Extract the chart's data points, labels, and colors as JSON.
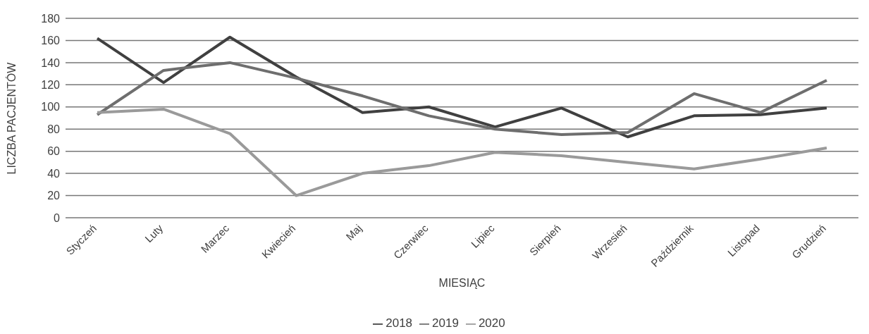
{
  "chart_data": {
    "type": "line",
    "xlabel": "MIESIĄC",
    "ylabel": "LICZBA PACJENTÓW",
    "categories": [
      "Styczeń",
      "Luty",
      "Marzec",
      "Kwiecień",
      "Maj",
      "Czerwiec",
      "Lipiec",
      "Sierpień",
      "Wrzesień",
      "Październik",
      "Listopad",
      "Grudzień"
    ],
    "series": [
      {
        "name": "2018",
        "color": "#404040",
        "values": [
          162,
          122,
          163,
          127,
          95,
          100,
          82,
          99,
          73,
          92,
          93,
          99
        ]
      },
      {
        "name": "2019",
        "color": "#6e6e6e",
        "values": [
          93,
          133,
          140,
          126,
          110,
          92,
          80,
          75,
          77,
          112,
          95,
          124
        ]
      },
      {
        "name": "2020",
        "color": "#9a9a9a",
        "values": [
          95,
          98,
          76,
          20,
          40,
          47,
          59,
          56,
          50,
          44,
          53,
          63
        ]
      }
    ],
    "ylim": [
      0,
      180
    ],
    "yticks": [
      0,
      20,
      40,
      60,
      80,
      100,
      120,
      140,
      160,
      180
    ],
    "grid": "y",
    "legend": "bottom",
    "marker": "none"
  }
}
